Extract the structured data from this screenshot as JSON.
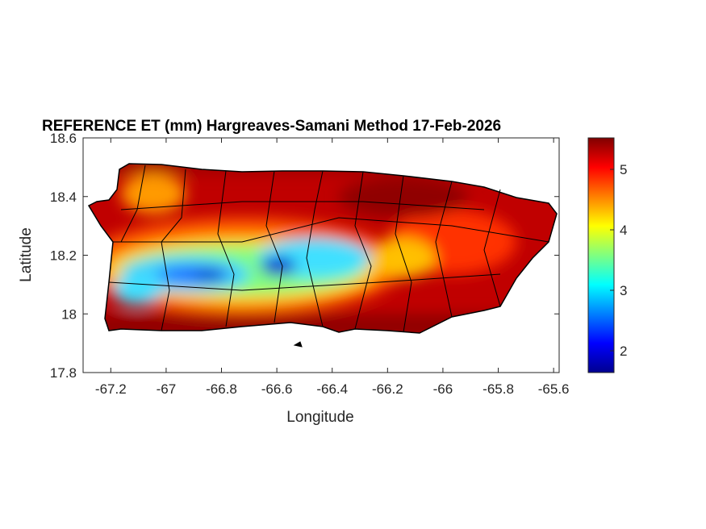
{
  "figure": {
    "title": "REFERENCE ET (mm) Hargreaves-Samani Method  17-Feb-2026",
    "xlabel": "Longitude",
    "ylabel": "Latitude"
  },
  "map": {
    "region": "Puerto Rico",
    "variable": "Reference ET (mm)",
    "method": "Hargreaves-Samani",
    "xlim": [
      -67.3,
      -65.58
    ],
    "ylim": [
      17.8,
      18.6
    ],
    "xticks": [
      -67.2,
      -67,
      -66.8,
      -66.6,
      -66.4,
      -66.2,
      -66,
      -65.8,
      -65.6
    ],
    "xtick_labels": [
      "-67.2",
      "-67",
      "-66.8",
      "-66.6",
      "-66.4",
      "-66.2",
      "-66",
      "-65.8",
      "-65.6"
    ],
    "yticks": [
      17.8,
      18,
      18.2,
      18.4,
      18.6
    ],
    "ytick_labels": [
      "17.8",
      "18",
      "18.2",
      "18.4",
      "18.6"
    ]
  },
  "colorbar": {
    "colormap": "jet",
    "clim": [
      1.64,
      5.52
    ],
    "ticks": [
      2,
      3,
      4,
      5
    ],
    "tick_labels": [
      "2",
      "3",
      "4",
      "5"
    ]
  }
}
